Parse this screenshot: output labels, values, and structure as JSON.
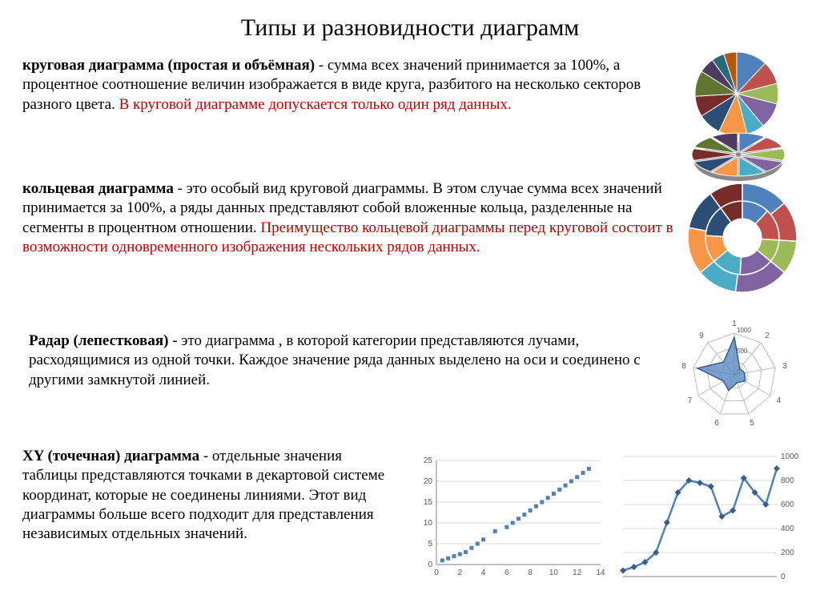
{
  "title": "Типы и разновидности диаграмм",
  "sections": {
    "pie": {
      "bold": "круговая диаграмма (простая и объёмная)",
      "text": " - сумма всех значений принимается за 100%, а процентное соотношение величин изображается в виде круга, разбитого на несколько секторов разного цвета. ",
      "red": "В круговой диаграмме допускается только один ряд данных."
    },
    "donut": {
      "bold": "кольцевая диаграмма",
      "text": " - это особый вид круговой диаграммы. В этом случае сумма всех значений принимается за 100%, а ряды данных представляют собой вложенные кольца, разделенные на сегменты в процентном отношении. ",
      "red": "Преимущество кольцевой диаграммы перед круговой состоит в возможности одновременного изображения нескольких рядов данных."
    },
    "radar": {
      "bold": "Радар (лепестковая)",
      "text": " - это диаграмма , в которой категории представляются лучами, расходящимися из одной точки. Каждое значение ряда данных выделено на оси и соединено с другими замкнутой линией."
    },
    "xy": {
      "bold": "XY (точечная) диаграмма",
      "text": " - отдельные значения таблицы представляются точками в декартовой системе координат, которые не соединены линиями. Этот вид диаграммы больше всего подходит для представления независимых отдельных значений."
    }
  },
  "charts": {
    "pie1": {
      "type": "pie",
      "colors": [
        "#4F81BD",
        "#C0504D",
        "#9BBB59",
        "#8064A2",
        "#4BACC6",
        "#F79646",
        "#2C4D75",
        "#772C2A",
        "#5F7530",
        "#4D3B62",
        "#276A7C",
        "#B65708"
      ],
      "values": [
        12,
        9,
        8,
        10,
        7,
        11,
        9,
        8,
        10,
        6,
        5,
        5
      ]
    },
    "pie2_3d": {
      "type": "pie-3d-exploded",
      "colors": [
        "#4F81BD",
        "#C0504D",
        "#9BBB59",
        "#8064A2",
        "#4BACC6",
        "#F79646",
        "#2C4D75",
        "#772C2A",
        "#5F7530",
        "#4D3B62"
      ],
      "values": [
        10,
        10,
        10,
        10,
        10,
        10,
        10,
        10,
        10,
        10
      ]
    },
    "donut": {
      "type": "donut",
      "rings": [
        {
          "colors": [
            "#4F81BD",
            "#C0504D",
            "#9BBB59",
            "#8064A2",
            "#4BACC6",
            "#F79646",
            "#2C4D75",
            "#772C2A"
          ],
          "values": [
            14,
            12,
            10,
            16,
            12,
            14,
            12,
            10
          ]
        },
        {
          "colors": [
            "#4F81BD",
            "#C0504D",
            "#9BBB59",
            "#8064A2",
            "#4BACC6",
            "#F79646",
            "#2C4D75",
            "#772C2A"
          ],
          "values": [
            12,
            14,
            10,
            15,
            13,
            12,
            14,
            10
          ]
        }
      ],
      "inner_hole_ratio": 0.35,
      "background": "#ffffff"
    },
    "radar": {
      "type": "radar",
      "axis_labels": [
        "1",
        "2",
        "3",
        "4",
        "5",
        "6",
        "7",
        "8",
        "9"
      ],
      "ring_labels": [
        "0",
        "500",
        "1000"
      ],
      "series_color": "#4F81BD",
      "series_values": [
        900,
        200,
        250,
        300,
        200,
        400,
        300,
        900,
        400
      ],
      "max": 1000,
      "grid_color": "#bfbfbf",
      "label_fontsize": 10
    },
    "scatter": {
      "type": "scatter",
      "x": [
        0.5,
        1,
        1.5,
        2,
        2.5,
        3,
        3.5,
        4,
        5,
        6,
        6.5,
        7,
        7.5,
        8,
        8.5,
        9,
        9.5,
        10,
        10.5,
        11,
        11.5,
        12,
        12.5,
        13
      ],
      "y": [
        1,
        1.5,
        2,
        2.5,
        3,
        4,
        5,
        6,
        8,
        9,
        10,
        11,
        12,
        13,
        14,
        15,
        16,
        17,
        18,
        19,
        20,
        21,
        22,
        23
      ],
      "marker_color": "#4F81BD",
      "marker_size": 5,
      "xlim": [
        0,
        14
      ],
      "ylim": [
        0,
        25
      ],
      "xtick_step": 2,
      "ytick_step": 5,
      "grid_color": "#d9d9d9",
      "label_fontsize": 10
    },
    "line": {
      "type": "line",
      "x": [
        0,
        1,
        2,
        3,
        4,
        5,
        6,
        7,
        8,
        9,
        10,
        11,
        12,
        13,
        14
      ],
      "y": [
        50,
        80,
        120,
        200,
        450,
        700,
        800,
        780,
        750,
        500,
        550,
        820,
        700,
        600,
        900
      ],
      "line_color": "#4F81BD",
      "line_width": 2.5,
      "marker_color": "#385D8A",
      "marker_size": 4,
      "ylim": [
        0,
        1000
      ],
      "ytick_step": 200,
      "grid_color": "#d9d9d9",
      "label_fontsize": 10
    }
  },
  "layout": {
    "bg": "#ffffff",
    "title_fontsize": 30,
    "para_fontsize": 19
  }
}
